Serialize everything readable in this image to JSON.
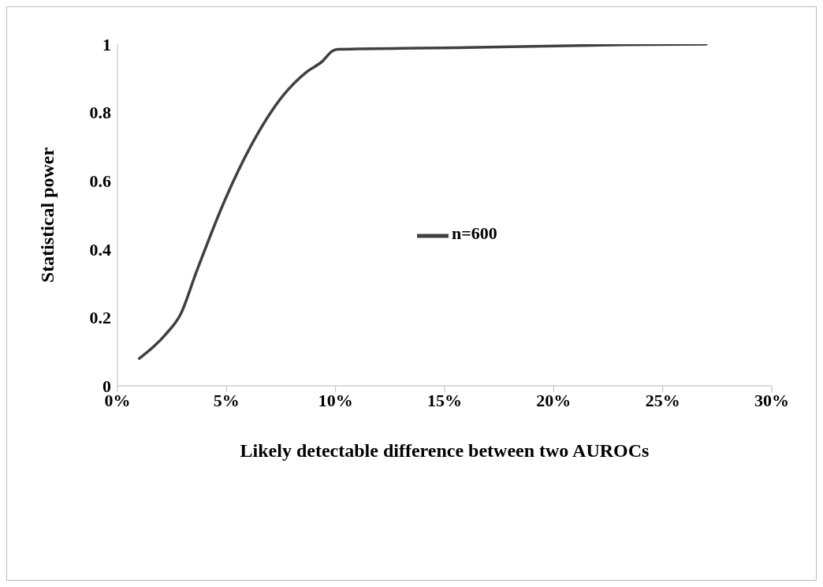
{
  "chart_data": {
    "type": "line",
    "xlabel": "Likely detectable difference between two AUROCs",
    "ylabel": "Statistical power",
    "x": [
      1,
      2.2,
      2.9,
      3.6,
      4.9,
      6.1,
      7.6,
      8.7,
      9.4,
      9.85,
      10.1,
      16,
      23.2,
      27
    ],
    "series": [
      {
        "name": "n=600",
        "color": "#404040",
        "values": [
          0.08,
          0.15,
          0.21,
          0.33,
          0.54,
          0.7,
          0.85,
          0.92,
          0.95,
          0.98,
          0.985,
          0.99,
          0.998,
          1
        ]
      }
    ],
    "xlim": [
      0,
      30
    ],
    "xticks": [
      {
        "value": 0,
        "label": "0%"
      },
      {
        "value": 5,
        "label": "5%"
      },
      {
        "value": 10,
        "label": "10%"
      },
      {
        "value": 15,
        "label": "15%"
      },
      {
        "value": 20,
        "label": "20%"
      },
      {
        "value": 25,
        "label": "25%"
      },
      {
        "value": 30,
        "label": "30%"
      }
    ],
    "ylim": [
      0,
      1
    ],
    "yticks": [
      0,
      0.2,
      0.4,
      0.6,
      0.8,
      1
    ],
    "grid": false,
    "legend": "center",
    "marker": "none",
    "line_style": "solid"
  }
}
